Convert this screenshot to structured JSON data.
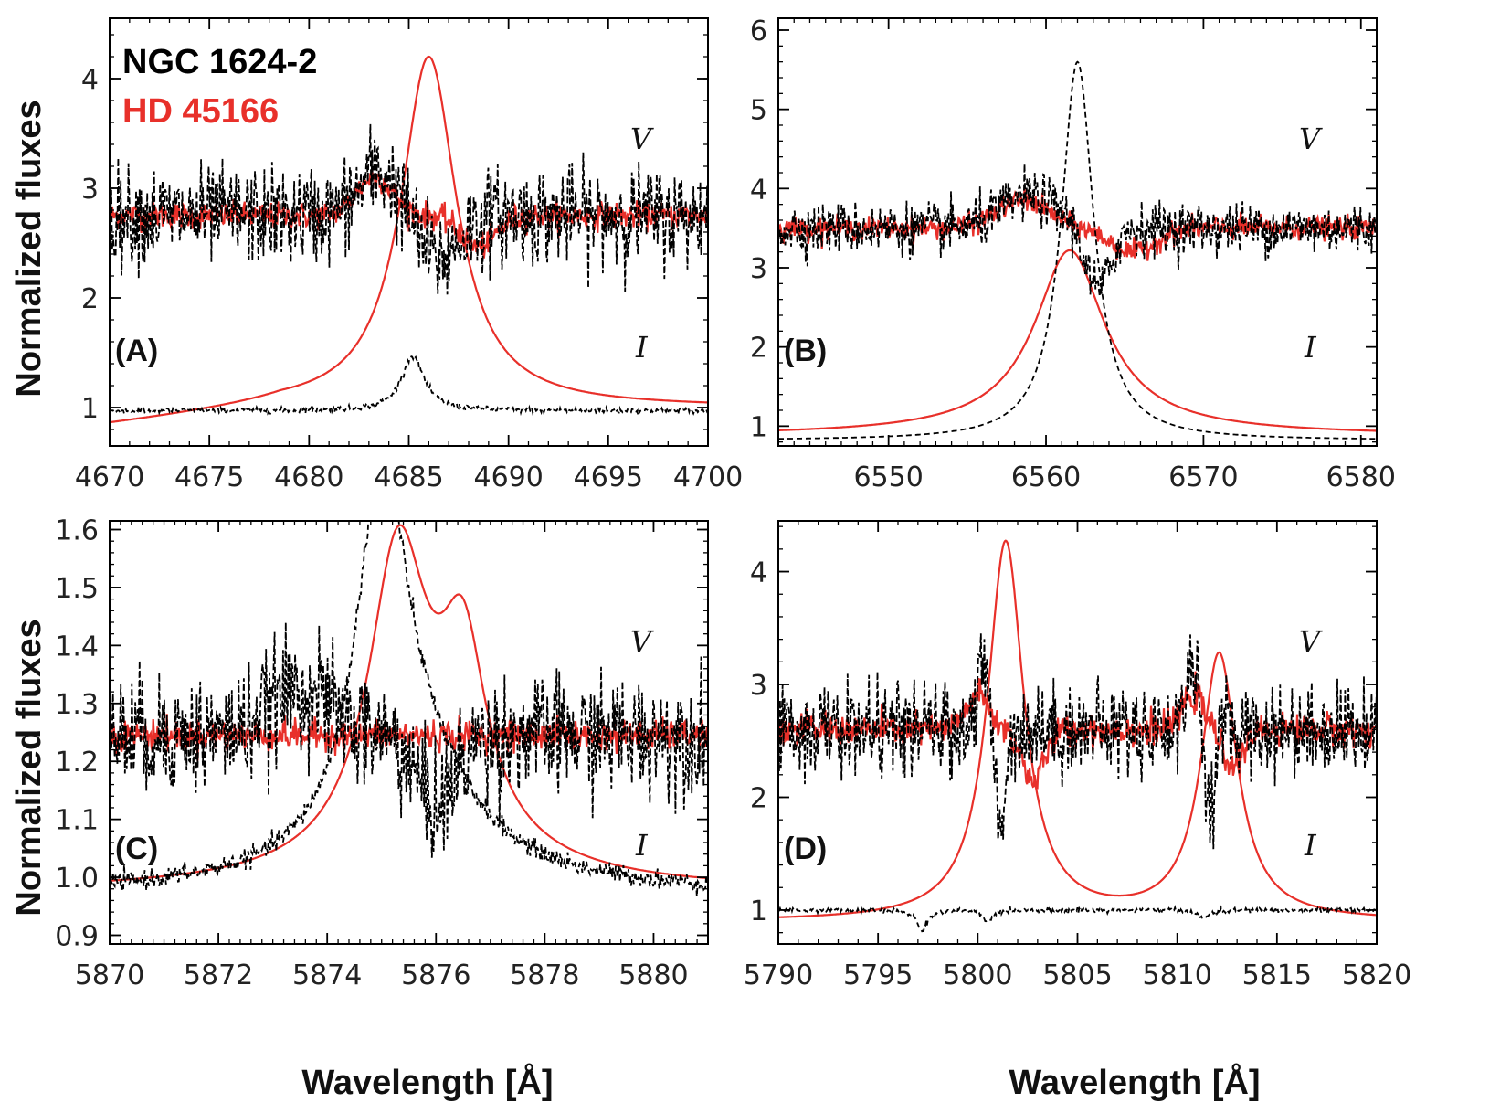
{
  "figure": {
    "ylabel": "Normalized fluxes",
    "xlabel": "Wavelength [Å]",
    "legend": [
      {
        "label": "NGC 1624-2",
        "color": "#000000"
      },
      {
        "label": "HD 45166",
        "color": "#e8302a"
      }
    ],
    "colors": {
      "ngc": "#000000",
      "hd": "#e8302a"
    }
  },
  "chart_data": [
    {
      "type": "line",
      "panel": "(A)",
      "xlim": [
        4670,
        4700
      ],
      "ylim": [
        0.65,
        4.55
      ],
      "xticks": [
        4670,
        4675,
        4680,
        4685,
        4690,
        4695,
        4700
      ],
      "yticks": [
        1,
        2,
        3,
        4
      ],
      "ytick_labels": [
        "1",
        "2",
        "3",
        "4"
      ],
      "xlabel": "",
      "ylabel": "Normalized fluxes",
      "v_label": "V",
      "i_label": "I",
      "legend": [
        "NGC 1624-2",
        "HD 45166"
      ],
      "series": [
        {
          "name": "HD 45166 I",
          "star": "HD 45166",
          "kind": "I",
          "base": 1.0,
          "start_level": 0.83,
          "peaks": [
            {
              "center": 4686.0,
              "amp": 3.2,
              "width": 1.7,
              "gpow": 1
            }
          ]
        },
        {
          "name": "HD 45166 V",
          "star": "HD 45166",
          "kind": "V",
          "base": 2.75,
          "noise": 0.06,
          "features": [
            {
              "center": 4683.3,
              "amp": 0.35,
              "width": 1.3
            },
            {
              "center": 4688.5,
              "amp": -0.28,
              "width": 1.2
            }
          ]
        },
        {
          "name": "NGC 1624-2 I",
          "star": "NGC 1624-2",
          "kind": "I",
          "base": 0.97,
          "noise": 0.012,
          "peaks": [
            {
              "center": 4685.2,
              "amp": 0.5,
              "width": 0.7,
              "gpow": 1
            }
          ]
        },
        {
          "name": "NGC 1624-2 V",
          "star": "NGC 1624-2",
          "kind": "V",
          "base": 2.75,
          "noise": 0.22,
          "features": [
            {
              "center": 4683.5,
              "amp": 0.4,
              "width": 1.4
            },
            {
              "center": 4686.5,
              "amp": -0.4,
              "width": 1.4
            }
          ]
        }
      ]
    },
    {
      "type": "line",
      "panel": "(B)",
      "xlim": [
        6543,
        6581
      ],
      "ylim": [
        0.75,
        6.15
      ],
      "xticks": [
        6550,
        6560,
        6570,
        6580
      ],
      "yticks": [
        1,
        2,
        3,
        4,
        5,
        6
      ],
      "ytick_labels": [
        "1",
        "2",
        "3",
        "4",
        "5",
        "6"
      ],
      "xlabel": "",
      "ylabel": "",
      "v_label": "V",
      "i_label": "I",
      "series": [
        {
          "name": "HD 45166 I",
          "star": "HD 45166",
          "kind": "I",
          "base": 0.87,
          "start_level": 0.87,
          "peaks": [
            {
              "center": 6561.5,
              "amp": 2.35,
              "width": 2.5,
              "gpow": 2
            }
          ]
        },
        {
          "name": "HD 45166 V",
          "star": "HD 45166",
          "kind": "V",
          "base": 3.5,
          "noise": 0.07,
          "features": [
            {
              "center": 6558.5,
              "amp": 0.35,
              "width": 2.3
            },
            {
              "center": 6565.5,
              "amp": -0.3,
              "width": 2.0
            }
          ]
        },
        {
          "name": "NGC 1624-2 I",
          "star": "NGC 1624-2",
          "kind": "I",
          "base": 0.82,
          "start_level": 0.82,
          "peaks": [
            {
              "center": 6562.0,
              "amp": 4.78,
              "width": 1.25,
              "gpow": 1
            }
          ]
        },
        {
          "name": "NGC 1624-2 V",
          "star": "NGC 1624-2",
          "kind": "V",
          "base": 3.5,
          "noise": 0.16,
          "features": [
            {
              "center": 6559.0,
              "amp": 0.4,
              "width": 2.5
            },
            {
              "center": 6563.3,
              "amp": -0.8,
              "width": 1.1
            }
          ]
        }
      ]
    },
    {
      "type": "line",
      "panel": "(C)",
      "xlim": [
        5870,
        5881
      ],
      "ylim": [
        0.885,
        1.615
      ],
      "xticks": [
        5870,
        5872,
        5874,
        5876,
        5878,
        5880
      ],
      "yticks": [
        0.9,
        1.0,
        1.1,
        1.2,
        1.3,
        1.4,
        1.5,
        1.6
      ],
      "ytick_labels": [
        "0.9",
        "1.0",
        "1.1",
        "1.2",
        "1.3",
        "1.4",
        "1.5",
        "1.6"
      ],
      "xlabel": "Wavelength [Å]",
      "ylabel": "Normalized fluxes",
      "v_label": "V",
      "i_label": "I",
      "series": [
        {
          "name": "HD 45166 I",
          "star": "HD 45166",
          "kind": "I",
          "base": 0.975,
          "start_level": 0.975,
          "peaks": [
            {
              "center": 5875.3,
              "amp": 0.5,
              "width": 0.65,
              "gpow": 1
            },
            {
              "center": 5876.5,
              "amp": 0.3,
              "width": 0.5,
              "gpow": 1
            },
            {
              "center": 5876.0,
              "amp": 0.1,
              "width": 1.6,
              "gpow": 2
            }
          ]
        },
        {
          "name": "HD 45166 V",
          "star": "HD 45166",
          "kind": "V",
          "base": 1.245,
          "noise": 0.013,
          "features": []
        },
        {
          "name": "NGC 1624-2 I",
          "star": "NGC 1624-2",
          "kind": "I",
          "base": 0.97,
          "noise": 0.008,
          "peaks": [
            {
              "center": 5875.0,
              "amp": 0.6,
              "width": 0.55,
              "gpow": 1
            },
            {
              "center": 5875.6,
              "amp": 0.2,
              "width": 1.2,
              "gpow": 2
            }
          ]
        },
        {
          "name": "NGC 1624-2 V",
          "star": "NGC 1624-2",
          "kind": "V",
          "base": 1.245,
          "noise": 0.05,
          "features": [
            {
              "center": 5873.5,
              "amp": 0.08,
              "width": 0.8
            },
            {
              "center": 5876.0,
              "amp": -0.12,
              "width": 0.5
            }
          ]
        }
      ]
    },
    {
      "type": "line",
      "panel": "(D)",
      "xlim": [
        5790,
        5820
      ],
      "ylim": [
        0.7,
        4.45
      ],
      "xticks": [
        5790,
        5795,
        5800,
        5805,
        5810,
        5815,
        5820
      ],
      "yticks": [
        1,
        2,
        3,
        4
      ],
      "ytick_labels": [
        "1",
        "2",
        "3",
        "4"
      ],
      "xlabel": "Wavelength [Å]",
      "ylabel": "",
      "v_label": "V",
      "i_label": "I",
      "series": [
        {
          "name": "HD 45166 I",
          "star": "HD 45166",
          "kind": "I",
          "base": 0.9,
          "start_level": 0.9,
          "peaks": [
            {
              "center": 5801.4,
              "amp": 3.35,
              "width": 1.1,
              "gpow": 1
            },
            {
              "center": 5812.1,
              "amp": 2.35,
              "width": 1.1,
              "gpow": 1
            }
          ]
        },
        {
          "name": "HD 45166 V",
          "star": "HD 45166",
          "kind": "V",
          "base": 2.6,
          "noise": 0.07,
          "features": [
            {
              "center": 5800.0,
              "amp": 0.3,
              "width": 0.8
            },
            {
              "center": 5802.8,
              "amp": -0.45,
              "width": 0.8
            },
            {
              "center": 5810.8,
              "amp": 0.3,
              "width": 0.8
            },
            {
              "center": 5812.8,
              "amp": -0.3,
              "width": 0.8
            }
          ]
        },
        {
          "name": "NGC 1624-2 I",
          "star": "NGC 1624-2",
          "kind": "I",
          "base": 1.0,
          "noise": 0.01,
          "dips": [
            {
              "center": 5797.2,
              "amp": -0.18,
              "width": 0.3
            },
            {
              "center": 5800.5,
              "amp": -0.1,
              "width": 0.3
            },
            {
              "center": 5811.3,
              "amp": -0.08,
              "width": 0.3
            }
          ]
        },
        {
          "name": "NGC 1624-2 V",
          "star": "NGC 1624-2",
          "kind": "V",
          "base": 2.6,
          "noise": 0.2,
          "features": [
            {
              "center": 5800.3,
              "amp": 0.5,
              "width": 0.5
            },
            {
              "center": 5801.1,
              "amp": -0.9,
              "width": 0.35
            },
            {
              "center": 5810.8,
              "amp": 0.6,
              "width": 0.5
            },
            {
              "center": 5811.6,
              "amp": -0.7,
              "width": 0.4
            }
          ]
        }
      ]
    }
  ]
}
